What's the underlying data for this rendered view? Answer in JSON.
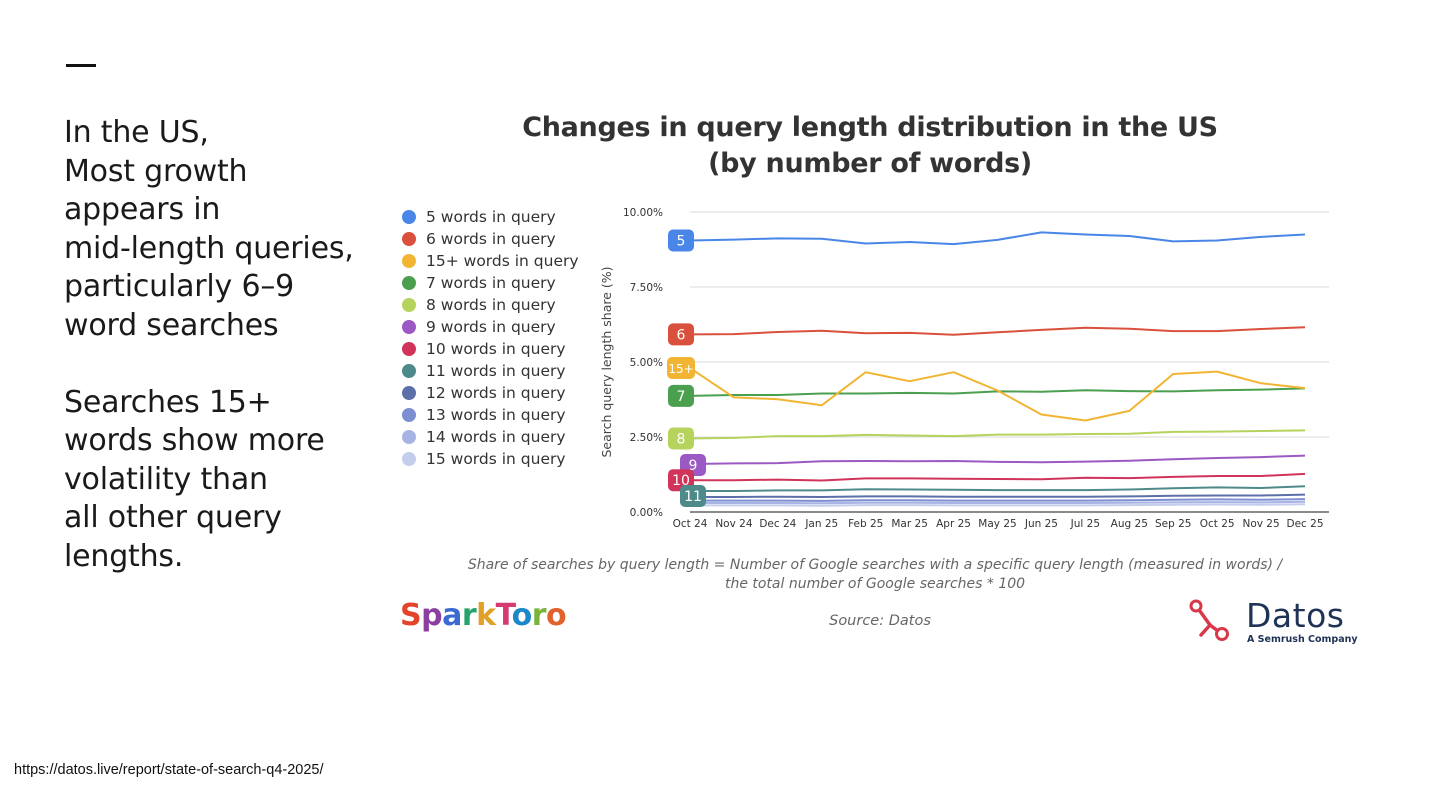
{
  "side_text": {
    "lines": [
      "In the US,",
      "Most growth",
      "appears in",
      "mid-length queries,",
      "particularly 6–9",
      "word searches"
    ],
    "lines2": [
      "Searches 15+",
      "words show more",
      "volatility than",
      "all other query",
      "lengths."
    ]
  },
  "chart_data": {
    "type": "line",
    "title": [
      "Changes in query length distribution in the US",
      "(by number of words)"
    ],
    "ylabel": "Search query length share (%)",
    "xlabel": "",
    "ylim": [
      0,
      10
    ],
    "yticks": [
      0,
      2.5,
      5,
      7.5,
      10
    ],
    "ytick_labels": [
      "0.00%",
      "2.50%",
      "5.00%",
      "7.50%",
      "10.00%"
    ],
    "categories": [
      "Oct 24",
      "Nov 24",
      "Dec 24",
      "Jan 25",
      "Feb 25",
      "Mar 25",
      "Apr 25",
      "May 25",
      "Jun 25",
      "Jul 25",
      "Aug 25",
      "Sep 25",
      "Oct 25",
      "Nov 25",
      "Dec 25"
    ],
    "series": [
      {
        "name": "5 words in query",
        "label": "5",
        "color": "#4a86e8",
        "values": [
          9.05,
          9.08,
          9.12,
          9.11,
          8.95,
          9.0,
          8.93,
          9.07,
          9.32,
          9.25,
          9.2,
          9.02,
          9.05,
          9.17,
          9.25
        ]
      },
      {
        "name": "6 words in query",
        "label": "6",
        "color": "#d9503c",
        "values": [
          5.92,
          5.93,
          6.0,
          6.04,
          5.96,
          5.97,
          5.91,
          5.99,
          6.07,
          6.14,
          6.11,
          6.03,
          6.03,
          6.1,
          6.16
        ]
      },
      {
        "name": "15+ words in query",
        "label": "15+",
        "color": "#f2b533",
        "values": [
          4.8,
          3.82,
          3.76,
          3.56,
          4.66,
          4.36,
          4.66,
          4.05,
          3.25,
          3.05,
          3.37,
          4.6,
          4.68,
          4.29,
          4.13
        ]
      },
      {
        "name": "7 words in query",
        "label": "7",
        "color": "#4ba050",
        "values": [
          3.87,
          3.9,
          3.9,
          3.95,
          3.95,
          3.97,
          3.95,
          4.02,
          4.01,
          4.06,
          4.03,
          4.02,
          4.06,
          4.08,
          4.12
        ]
      },
      {
        "name": "8 words in query",
        "label": "8",
        "color": "#b5d35d",
        "values": [
          2.45,
          2.47,
          2.53,
          2.53,
          2.57,
          2.55,
          2.53,
          2.58,
          2.58,
          2.6,
          2.61,
          2.67,
          2.68,
          2.7,
          2.72
        ]
      },
      {
        "name": "9 words in query",
        "label": "9",
        "color": "#9b59c4",
        "values": [
          1.6,
          1.62,
          1.63,
          1.69,
          1.7,
          1.69,
          1.7,
          1.67,
          1.66,
          1.68,
          1.71,
          1.76,
          1.8,
          1.83,
          1.88
        ]
      },
      {
        "name": "10 words in query",
        "label": "10",
        "color": "#d1345b",
        "values": [
          1.06,
          1.06,
          1.08,
          1.05,
          1.12,
          1.12,
          1.11,
          1.1,
          1.09,
          1.14,
          1.13,
          1.17,
          1.2,
          1.2,
          1.27
        ]
      },
      {
        "name": "11 words in query",
        "label": "11",
        "color": "#4f8a8b",
        "values": [
          0.7,
          0.7,
          0.72,
          0.72,
          0.76,
          0.75,
          0.74,
          0.73,
          0.73,
          0.73,
          0.75,
          0.79,
          0.82,
          0.8,
          0.86
        ]
      },
      {
        "name": "12 words in query",
        "label": "",
        "color": "#5c6fa8",
        "values": [
          0.5,
          0.5,
          0.51,
          0.5,
          0.52,
          0.52,
          0.51,
          0.51,
          0.51,
          0.51,
          0.52,
          0.54,
          0.55,
          0.55,
          0.58
        ]
      },
      {
        "name": "13 words in query",
        "label": "",
        "color": "#7d8fd1",
        "values": [
          0.38,
          0.38,
          0.38,
          0.37,
          0.39,
          0.39,
          0.38,
          0.38,
          0.38,
          0.38,
          0.39,
          0.41,
          0.42,
          0.41,
          0.43
        ]
      },
      {
        "name": "14 words in query",
        "label": "",
        "color": "#a7b4e3",
        "values": [
          0.3,
          0.3,
          0.3,
          0.29,
          0.31,
          0.31,
          0.3,
          0.3,
          0.3,
          0.3,
          0.31,
          0.32,
          0.33,
          0.32,
          0.34
        ]
      },
      {
        "name": "15 words in query",
        "label": "",
        "color": "#c5cdec",
        "values": [
          0.22,
          0.22,
          0.22,
          0.21,
          0.23,
          0.23,
          0.22,
          0.22,
          0.22,
          0.22,
          0.23,
          0.24,
          0.25,
          0.24,
          0.26
        ]
      }
    ],
    "footnote": [
      "Share of searches by query length = Number of Google searches with a specific query length (measured in words) /",
      "the total number of Google searches * 100"
    ],
    "source": "Source: Datos"
  },
  "logos": {
    "sparktoro": [
      "S",
      "p",
      "a",
      "r",
      "k",
      "T",
      "o",
      "r",
      "o"
    ],
    "datos_name": "Datos",
    "datos_sub": "A Semrush Company"
  },
  "footer_url": "https://datos.live/report/state-of-search-q4-2025/"
}
